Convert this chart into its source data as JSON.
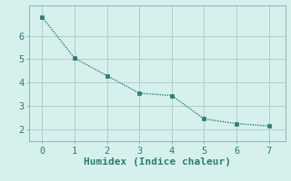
{
  "x": [
    0,
    1,
    2,
    3,
    4,
    5,
    6,
    7
  ],
  "y": [
    6.8,
    5.05,
    4.3,
    3.55,
    3.45,
    2.45,
    2.25,
    2.15
  ],
  "line_color": "#2d7d6e",
  "marker": "s",
  "marker_size": 2.5,
  "background_color": "#d6f0ee",
  "grid_color": "#b0ceca",
  "xlabel": "Humidex (Indice chaleur)",
  "xlabel_fontsize": 8,
  "tick_fontsize": 7.5,
  "xlim": [
    -0.4,
    7.5
  ],
  "ylim": [
    1.5,
    7.3
  ],
  "yticks": [
    2,
    3,
    4,
    5,
    6
  ],
  "xticks": [
    0,
    1,
    2,
    3,
    4,
    5,
    6,
    7
  ],
  "line_width": 1.0,
  "font_family": "monospace"
}
